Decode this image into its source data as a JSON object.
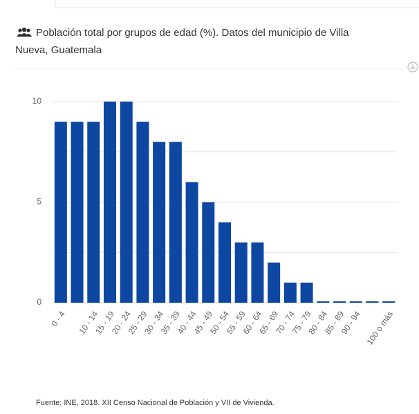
{
  "chart_data": {
    "type": "bar",
    "title_line1": "Población total por grupos de edad (%). Datos del municipio de Villa",
    "title_line2": "Nueva, Guatemala",
    "source": "Fuente: INE, 2018. XII Censo Nacional de Población y VII de Vivienda.",
    "categories": [
      "0 - 4",
      null,
      "10 - 14",
      "15 - 19",
      "20 - 24",
      "25 - 29",
      "30 - 34",
      "35 - 39",
      "40 - 44",
      "45 - 49",
      "50 - 54",
      "55 - 59",
      "60 - 64",
      "65 - 69",
      "70 - 74",
      "75 - 79",
      "80 - 84",
      "85 - 89",
      "90 - 94",
      null,
      "100 o más"
    ],
    "values": [
      9,
      9,
      9,
      10,
      10,
      9,
      8,
      8,
      6,
      5,
      4,
      3,
      3,
      2,
      1,
      1,
      0,
      0,
      0,
      0,
      0
    ],
    "color": "#0d47a1",
    "ylim": [
      0,
      10
    ],
    "yticks": [
      0,
      {
        "value": 2.5,
        "label": null
      },
      5,
      {
        "value": 7.5,
        "label": null
      },
      10
    ],
    "grid": true
  }
}
